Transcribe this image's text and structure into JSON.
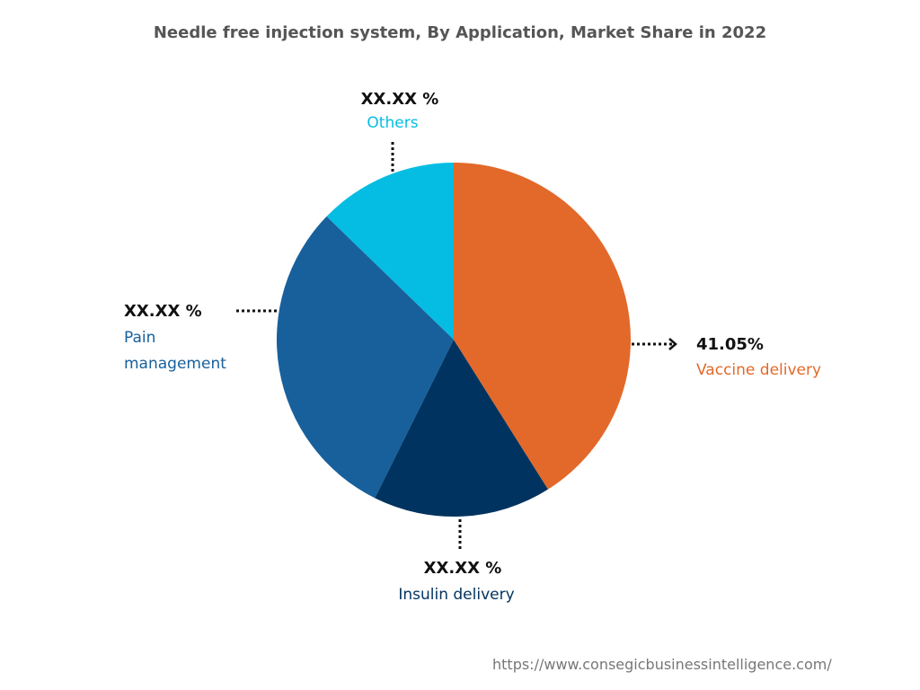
{
  "chart_data": {
    "type": "pie",
    "title": "Needle free injection system, By Application, Market Share in 2022",
    "categories": [
      "Vaccine delivery",
      "Insulin delivery",
      "Pain management",
      "Others"
    ],
    "values": [
      41.05,
      16.3,
      29.9,
      12.75
    ],
    "value_labels": [
      "41.05%",
      "XX.XX %",
      "XX.XX %",
      "XX.XX %"
    ],
    "colors": [
      "#e2692a",
      "#00335f",
      "#17609c",
      "#05bde3"
    ],
    "source": "https://www.consegicbusinessintelligence.com/"
  }
}
